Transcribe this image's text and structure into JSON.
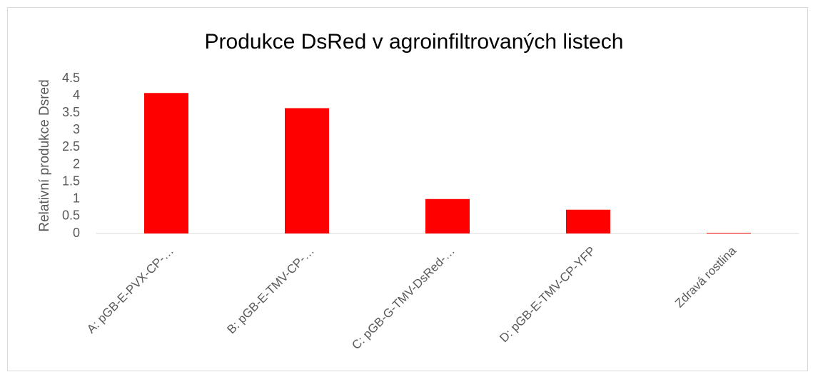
{
  "chart_data": {
    "type": "bar",
    "title": "Produkce DsRed v agroinfiltrovaných listech",
    "y_label": "Relativní produkce Dsred",
    "categories": [
      "A: pGB-E-PVX-CP-…",
      "B: pGB-E-TMV-CP-…",
      "C: pGB-G-TMV-DsRed-…",
      "D: pGB-E-TMV-CP-YFP",
      "Zdravá rostlina"
    ],
    "values": [
      4.08,
      3.64,
      1.0,
      0.69,
      0.02
    ],
    "color": "#ff0000",
    "ylim": [
      0,
      4.5
    ],
    "yticks": [
      0,
      0.5,
      1,
      1.5,
      2,
      2.5,
      3,
      3.5,
      4,
      4.5
    ],
    "grid": false
  }
}
